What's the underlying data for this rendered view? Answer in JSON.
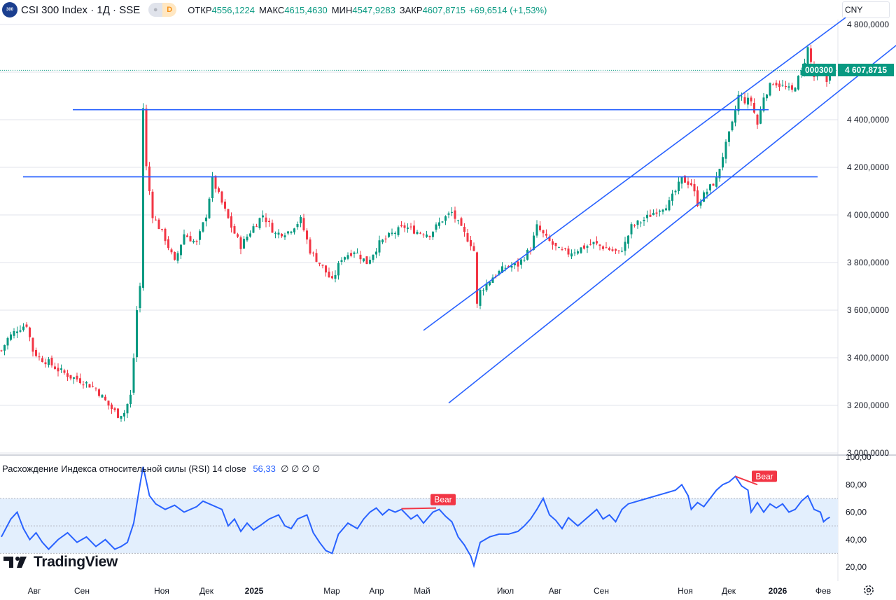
{
  "header": {
    "symbol_badge": "300",
    "title": "CSI 300 Index · 1Д · SSE",
    "interval_pill": "D",
    "open_label": "ОТКР",
    "open_value": "4556,1224",
    "high_label": "МАКС",
    "high_value": "4615,4630",
    "low_label": "МИН",
    "low_value": "4547,9283",
    "close_label": "ЗАКР",
    "close_value": "4607,8715",
    "change": "+69,6514 (+1,53%)",
    "currency": "CNY"
  },
  "colors": {
    "up": "#089981",
    "down": "#f23645",
    "channel": "#2962ff",
    "rsi": "#2962ff",
    "rsi_band": "#e3effd"
  },
  "price_label": {
    "ticker": "000300",
    "value": "4 607,8715"
  },
  "chart_data": [
    {
      "type": "candlestick",
      "title": "CSI 300 Index · 1Д · SSE",
      "ylim": [
        3000,
        4800
      ],
      "y_ticks": [
        "3 000,0000",
        "3 200,0000",
        "3 400,0000",
        "3 600,0000",
        "3 800,0000",
        "4 000,0000",
        "4 200,0000",
        "4 400,0000",
        "4 600,0000",
        "4 800,0000"
      ],
      "x_ticks": [
        "Авг",
        "Сен",
        "Ноя",
        "Дек",
        "2025",
        "Мар",
        "Апр",
        "Май",
        "Июл",
        "Авг",
        "Сен",
        "Ноя",
        "Дек",
        "2026",
        "Фев"
      ],
      "last_close": 4607.87,
      "close_path": [
        [
          0,
          3430
        ],
        [
          2,
          3480
        ],
        [
          5,
          3520
        ],
        [
          8,
          3540
        ],
        [
          10,
          3430
        ],
        [
          12,
          3400
        ],
        [
          15,
          3380
        ],
        [
          18,
          3350
        ],
        [
          22,
          3320
        ],
        [
          26,
          3300
        ],
        [
          30,
          3270
        ],
        [
          34,
          3200
        ],
        [
          37,
          3160
        ],
        [
          39,
          3170
        ],
        [
          41,
          3240
        ],
        [
          42,
          3400
        ],
        [
          43,
          3600
        ],
        [
          44,
          3700
        ],
        [
          45,
          4450
        ],
        [
          46,
          4200
        ],
        [
          48,
          4000
        ],
        [
          52,
          3900
        ],
        [
          55,
          3800
        ],
        [
          58,
          3920
        ],
        [
          62,
          3880
        ],
        [
          65,
          4000
        ],
        [
          67,
          4150
        ],
        [
          70,
          4050
        ],
        [
          73,
          3950
        ],
        [
          76,
          3870
        ],
        [
          80,
          3950
        ],
        [
          83,
          4000
        ],
        [
          87,
          3920
        ],
        [
          91,
          3930
        ],
        [
          95,
          3980
        ],
        [
          98,
          3850
        ],
        [
          102,
          3780
        ],
        [
          105,
          3720
        ],
        [
          108,
          3820
        ],
        [
          112,
          3850
        ],
        [
          116,
          3800
        ],
        [
          120,
          3880
        ],
        [
          124,
          3920
        ],
        [
          128,
          3950
        ],
        [
          132,
          3930
        ],
        [
          136,
          3920
        ],
        [
          140,
          3980
        ],
        [
          143,
          4010
        ],
        [
          146,
          3940
        ],
        [
          149,
          3880
        ],
        [
          150,
          3850
        ],
        [
          151,
          3620
        ],
        [
          152,
          3680
        ],
        [
          156,
          3740
        ],
        [
          160,
          3780
        ],
        [
          164,
          3790
        ],
        [
          168,
          3860
        ],
        [
          170,
          3950
        ],
        [
          173,
          3900
        ],
        [
          177,
          3850
        ],
        [
          180,
          3840
        ],
        [
          184,
          3860
        ],
        [
          188,
          3880
        ],
        [
          192,
          3860
        ],
        [
          196,
          3840
        ],
        [
          198,
          3880
        ],
        [
          200,
          3950
        ],
        [
          204,
          3980
        ],
        [
          208,
          4020
        ],
        [
          212,
          4050
        ],
        [
          216,
          4150
        ],
        [
          219,
          4130
        ],
        [
          221,
          4050
        ],
        [
          224,
          4100
        ],
        [
          227,
          4150
        ],
        [
          229,
          4250
        ],
        [
          232,
          4380
        ],
        [
          234,
          4500
        ],
        [
          236,
          4480
        ],
        [
          238,
          4480
        ],
        [
          240,
          4380
        ],
        [
          242,
          4500
        ],
        [
          245,
          4560
        ],
        [
          248,
          4540
        ],
        [
          251,
          4520
        ],
        [
          254,
          4600
        ],
        [
          256,
          4700
        ],
        [
          258,
          4580
        ],
        [
          260,
          4600
        ],
        [
          262,
          4560
        ],
        [
          263,
          4608
        ]
      ],
      "horizontal_levels": [
        4442,
        4160
      ],
      "channel": {
        "upper": [
          [
            134,
            3515
          ],
          [
            268,
            4829
          ]
        ],
        "lower": [
          [
            142,
            3210
          ],
          [
            288,
            4754
          ]
        ]
      }
    },
    {
      "type": "line",
      "title": "Расхождение Индекса относительной силы (RSI) 14 close",
      "ylim": [
        20,
        100
      ],
      "y_ticks": [
        "20,00",
        "40,00",
        "60,00",
        "80,00",
        "100,00"
      ],
      "band": [
        30,
        70
      ],
      "midline": 50,
      "current_value": "56,33",
      "points": [
        [
          0,
          42
        ],
        [
          3,
          55
        ],
        [
          5,
          60
        ],
        [
          7,
          48
        ],
        [
          9,
          40
        ],
        [
          11,
          45
        ],
        [
          13,
          38
        ],
        [
          15,
          33
        ],
        [
          18,
          40
        ],
        [
          21,
          45
        ],
        [
          24,
          38
        ],
        [
          27,
          42
        ],
        [
          30,
          35
        ],
        [
          33,
          40
        ],
        [
          36,
          33
        ],
        [
          38,
          35
        ],
        [
          40,
          38
        ],
        [
          42,
          52
        ],
        [
          44,
          80
        ],
        [
          45,
          93
        ],
        [
          47,
          72
        ],
        [
          49,
          66
        ],
        [
          52,
          62
        ],
        [
          55,
          65
        ],
        [
          58,
          60
        ],
        [
          62,
          64
        ],
        [
          64,
          68
        ],
        [
          67,
          65
        ],
        [
          70,
          62
        ],
        [
          72,
          50
        ],
        [
          74,
          55
        ],
        [
          76,
          46
        ],
        [
          78,
          52
        ],
        [
          80,
          47
        ],
        [
          82,
          50
        ],
        [
          85,
          55
        ],
        [
          88,
          58
        ],
        [
          90,
          50
        ],
        [
          92,
          48
        ],
        [
          94,
          55
        ],
        [
          97,
          58
        ],
        [
          99,
          45
        ],
        [
          101,
          38
        ],
        [
          103,
          32
        ],
        [
          105,
          30
        ],
        [
          107,
          44
        ],
        [
          110,
          52
        ],
        [
          113,
          48
        ],
        [
          115,
          55
        ],
        [
          117,
          60
        ],
        [
          119,
          63
        ],
        [
          121,
          58
        ],
        [
          123,
          62
        ],
        [
          125,
          60
        ],
        [
          127,
          62
        ],
        [
          130,
          55
        ],
        [
          132,
          58
        ],
        [
          134,
          52
        ],
        [
          137,
          60
        ],
        [
          139,
          62
        ],
        [
          141,
          57
        ],
        [
          143,
          53
        ],
        [
          145,
          42
        ],
        [
          147,
          36
        ],
        [
          149,
          28
        ],
        [
          150,
          21
        ],
        [
          152,
          38
        ],
        [
          155,
          42
        ],
        [
          158,
          44
        ],
        [
          161,
          44
        ],
        [
          164,
          46
        ],
        [
          166,
          50
        ],
        [
          168,
          55
        ],
        [
          170,
          62
        ],
        [
          172,
          70
        ],
        [
          174,
          58
        ],
        [
          176,
          54
        ],
        [
          178,
          48
        ],
        [
          180,
          56
        ],
        [
          183,
          50
        ],
        [
          186,
          56
        ],
        [
          189,
          62
        ],
        [
          191,
          55
        ],
        [
          193,
          58
        ],
        [
          195,
          53
        ],
        [
          197,
          62
        ],
        [
          199,
          66
        ],
        [
          202,
          68
        ],
        [
          205,
          70
        ],
        [
          208,
          72
        ],
        [
          211,
          74
        ],
        [
          214,
          76
        ],
        [
          216,
          80
        ],
        [
          218,
          72
        ],
        [
          219,
          62
        ],
        [
          221,
          67
        ],
        [
          223,
          64
        ],
        [
          225,
          70
        ],
        [
          227,
          76
        ],
        [
          229,
          80
        ],
        [
          231,
          82
        ],
        [
          233,
          86
        ],
        [
          235,
          79
        ],
        [
          237,
          76
        ],
        [
          238,
          60
        ],
        [
          240,
          67
        ],
        [
          242,
          60
        ],
        [
          244,
          66
        ],
        [
          246,
          63
        ],
        [
          248,
          66
        ],
        [
          250,
          60
        ],
        [
          252,
          62
        ],
        [
          254,
          68
        ],
        [
          256,
          72
        ],
        [
          258,
          62
        ],
        [
          260,
          60
        ],
        [
          261,
          53
        ],
        [
          262,
          55
        ],
        [
          263,
          56.33
        ]
      ],
      "divergence_labels": [
        {
          "text": "Bear",
          "line": [
            [
              127,
              62.5
            ],
            [
              138,
              63
            ]
          ]
        },
        {
          "text": "Bear",
          "line": [
            [
              233,
              86
            ],
            [
              240,
              80
            ]
          ]
        }
      ]
    }
  ],
  "watermark": "TradingView"
}
